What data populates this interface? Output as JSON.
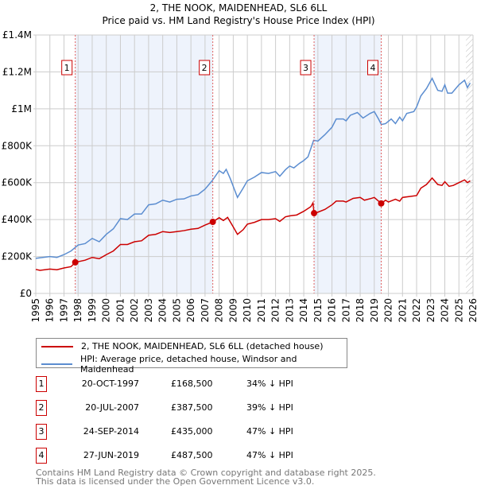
{
  "chart_data": {
    "type": "line",
    "title": "2, THE NOOK, MAIDENHEAD, SL6 6LL",
    "subtitle": "Price paid vs. HM Land Registry's House Price Index (HPI)",
    "xlim": [
      1995,
      2026
    ],
    "ylim": [
      0,
      1400000
    ],
    "x_ticks": [
      "1995",
      "1996",
      "1997",
      "1998",
      "1999",
      "2000",
      "2001",
      "2002",
      "2003",
      "2004",
      "2005",
      "2006",
      "2007",
      "2008",
      "2009",
      "2010",
      "2011",
      "2012",
      "2013",
      "2014",
      "2015",
      "2016",
      "2017",
      "2018",
      "2019",
      "2020",
      "2021",
      "2022",
      "2023",
      "2024",
      "2025",
      "2026"
    ],
    "y_ticks": [
      {
        "v": 0,
        "label": "£0"
      },
      {
        "v": 200000,
        "label": "£200K"
      },
      {
        "v": 400000,
        "label": "£400K"
      },
      {
        "v": 600000,
        "label": "£600K"
      },
      {
        "v": 800000,
        "label": "£800K"
      },
      {
        "v": 1000000,
        "label": "£1M"
      },
      {
        "v": 1200000,
        "label": "£1.2M"
      },
      {
        "v": 1400000,
        "label": "£1.4M"
      }
    ],
    "grid": true,
    "shaded_ranges": [
      [
        1997.8,
        2007.55
      ],
      [
        2014.73,
        2019.49
      ]
    ],
    "hatched_from": 2025.5,
    "series": [
      {
        "name": "HPI: Average price, detached house, Windsor and Maidenhead",
        "color": "#5b8dd0",
        "points": [
          [
            1995,
            190
          ],
          [
            1996,
            200
          ],
          [
            1996.5,
            195
          ],
          [
            1997,
            210
          ],
          [
            1997.5,
            230
          ],
          [
            1998,
            262
          ],
          [
            1998.5,
            270
          ],
          [
            1999,
            298
          ],
          [
            1999.5,
            280
          ],
          [
            2000,
            320
          ],
          [
            2000.5,
            350
          ],
          [
            2001,
            405
          ],
          [
            2001.5,
            400
          ],
          [
            2002,
            430
          ],
          [
            2002.5,
            430
          ],
          [
            2003,
            480
          ],
          [
            2003.5,
            485
          ],
          [
            2004,
            505
          ],
          [
            2004.5,
            495
          ],
          [
            2005,
            510
          ],
          [
            2005.5,
            512
          ],
          [
            2006,
            528
          ],
          [
            2006.5,
            535
          ],
          [
            2007,
            565
          ],
          [
            2007.5,
            610
          ],
          [
            2008,
            665
          ],
          [
            2008.3,
            650
          ],
          [
            2008.5,
            672
          ],
          [
            2008.8,
            620
          ],
          [
            2009,
            580
          ],
          [
            2009.3,
            520
          ],
          [
            2009.7,
            570
          ],
          [
            2010,
            610
          ],
          [
            2010.5,
            630
          ],
          [
            2011,
            655
          ],
          [
            2011.5,
            650
          ],
          [
            2012,
            660
          ],
          [
            2012.3,
            635
          ],
          [
            2012.7,
            670
          ],
          [
            2013,
            690
          ],
          [
            2013.3,
            680
          ],
          [
            2013.7,
            705
          ],
          [
            2014,
            720
          ],
          [
            2014.3,
            740
          ],
          [
            2014.7,
            830
          ],
          [
            2015,
            825
          ],
          [
            2015.5,
            860
          ],
          [
            2016,
            900
          ],
          [
            2016.3,
            945
          ],
          [
            2016.8,
            945
          ],
          [
            2017,
            935
          ],
          [
            2017.3,
            965
          ],
          [
            2017.8,
            980
          ],
          [
            2018.2,
            950
          ],
          [
            2018.7,
            975
          ],
          [
            2019,
            985
          ],
          [
            2019.3,
            945
          ],
          [
            2019.5,
            915
          ],
          [
            2019.8,
            920
          ],
          [
            2020.2,
            945
          ],
          [
            2020.5,
            920
          ],
          [
            2020.8,
            955
          ],
          [
            2021,
            935
          ],
          [
            2021.3,
            975
          ],
          [
            2021.8,
            985
          ],
          [
            2022,
            1010
          ],
          [
            2022.3,
            1070
          ],
          [
            2022.7,
            1110
          ],
          [
            2023.1,
            1165
          ],
          [
            2023.5,
            1100
          ],
          [
            2023.8,
            1095
          ],
          [
            2024,
            1130
          ],
          [
            2024.2,
            1085
          ],
          [
            2024.5,
            1085
          ],
          [
            2025,
            1130
          ],
          [
            2025.4,
            1155
          ],
          [
            2025.6,
            1115
          ],
          [
            2025.8,
            1140
          ]
        ]
      },
      {
        "name": "2, THE NOOK, MAIDENHEAD, SL6 6LL (detached house)",
        "color": "#cc0000",
        "points": [
          [
            1995,
            130
          ],
          [
            1995.3,
            125
          ],
          [
            1996,
            132
          ],
          [
            1996.5,
            128
          ],
          [
            1997,
            138
          ],
          [
            1997.5,
            145
          ],
          [
            1997.8,
            168.5
          ],
          [
            1998.5,
            180
          ],
          [
            1999,
            195
          ],
          [
            1999.5,
            188
          ],
          [
            2000,
            210
          ],
          [
            2000.5,
            230
          ],
          [
            2001,
            265
          ],
          [
            2001.5,
            265
          ],
          [
            2002,
            280
          ],
          [
            2002.5,
            285
          ],
          [
            2003,
            315
          ],
          [
            2003.5,
            320
          ],
          [
            2004,
            335
          ],
          [
            2004.5,
            330
          ],
          [
            2005,
            335
          ],
          [
            2005.5,
            340
          ],
          [
            2006,
            348
          ],
          [
            2006.5,
            352
          ],
          [
            2007,
            370
          ],
          [
            2007.55,
            387.5
          ],
          [
            2008,
            410
          ],
          [
            2008.3,
            395
          ],
          [
            2008.6,
            412
          ],
          [
            2009,
            360
          ],
          [
            2009.3,
            320
          ],
          [
            2009.7,
            345
          ],
          [
            2010,
            375
          ],
          [
            2010.5,
            385
          ],
          [
            2011,
            400
          ],
          [
            2011.5,
            400
          ],
          [
            2012,
            405
          ],
          [
            2012.3,
            390
          ],
          [
            2012.7,
            415
          ],
          [
            2013,
            420
          ],
          [
            2013.5,
            425
          ],
          [
            2014,
            445
          ],
          [
            2014.5,
            470
          ],
          [
            2014.65,
            490
          ],
          [
            2014.73,
            435
          ],
          [
            2015,
            440
          ],
          [
            2015.5,
            455
          ],
          [
            2016,
            480
          ],
          [
            2016.3,
            500
          ],
          [
            2016.8,
            500
          ],
          [
            2017,
            495
          ],
          [
            2017.5,
            515
          ],
          [
            2018,
            520
          ],
          [
            2018.3,
            505
          ],
          [
            2018.8,
            515
          ],
          [
            2019,
            520
          ],
          [
            2019.49,
            487.5
          ],
          [
            2019.8,
            505
          ],
          [
            2020,
            495
          ],
          [
            2020.5,
            510
          ],
          [
            2020.8,
            500
          ],
          [
            2021,
            520
          ],
          [
            2021.5,
            525
          ],
          [
            2022,
            530
          ],
          [
            2022.3,
            570
          ],
          [
            2022.7,
            590
          ],
          [
            2023.1,
            625
          ],
          [
            2023.5,
            590
          ],
          [
            2023.8,
            585
          ],
          [
            2024,
            605
          ],
          [
            2024.3,
            580
          ],
          [
            2024.6,
            585
          ],
          [
            2025,
            600
          ],
          [
            2025.4,
            615
          ],
          [
            2025.6,
            600
          ],
          [
            2025.8,
            610
          ]
        ]
      }
    ],
    "sales": [
      {
        "label": "1",
        "x": 1997.8,
        "value": 168500,
        "date": "20-OCT-1997",
        "price": "£168,500",
        "hpi": "34% ↓ HPI"
      },
      {
        "label": "2",
        "x": 2007.55,
        "value": 387500,
        "date": "20-JUL-2007",
        "price": "£387,500",
        "hpi": "39% ↓ HPI"
      },
      {
        "label": "3",
        "x": 2014.73,
        "value": 435000,
        "date": "24-SEP-2014",
        "price": "£435,000",
        "hpi": "47% ↓ HPI"
      },
      {
        "label": "4",
        "x": 2019.49,
        "value": 487500,
        "date": "27-JUN-2019",
        "price": "£487,500",
        "hpi": "47% ↓ HPI"
      }
    ]
  },
  "legend": {
    "red": "2, THE NOOK, MAIDENHEAD, SL6 6LL (detached house)",
    "blue": "HPI: Average price, detached house, Windsor and Maidenhead"
  },
  "footer": {
    "line1": "Contains HM Land Registry data © Crown copyright and database right 2025.",
    "line2": "This data is licensed under the Open Government Licence v3.0."
  }
}
